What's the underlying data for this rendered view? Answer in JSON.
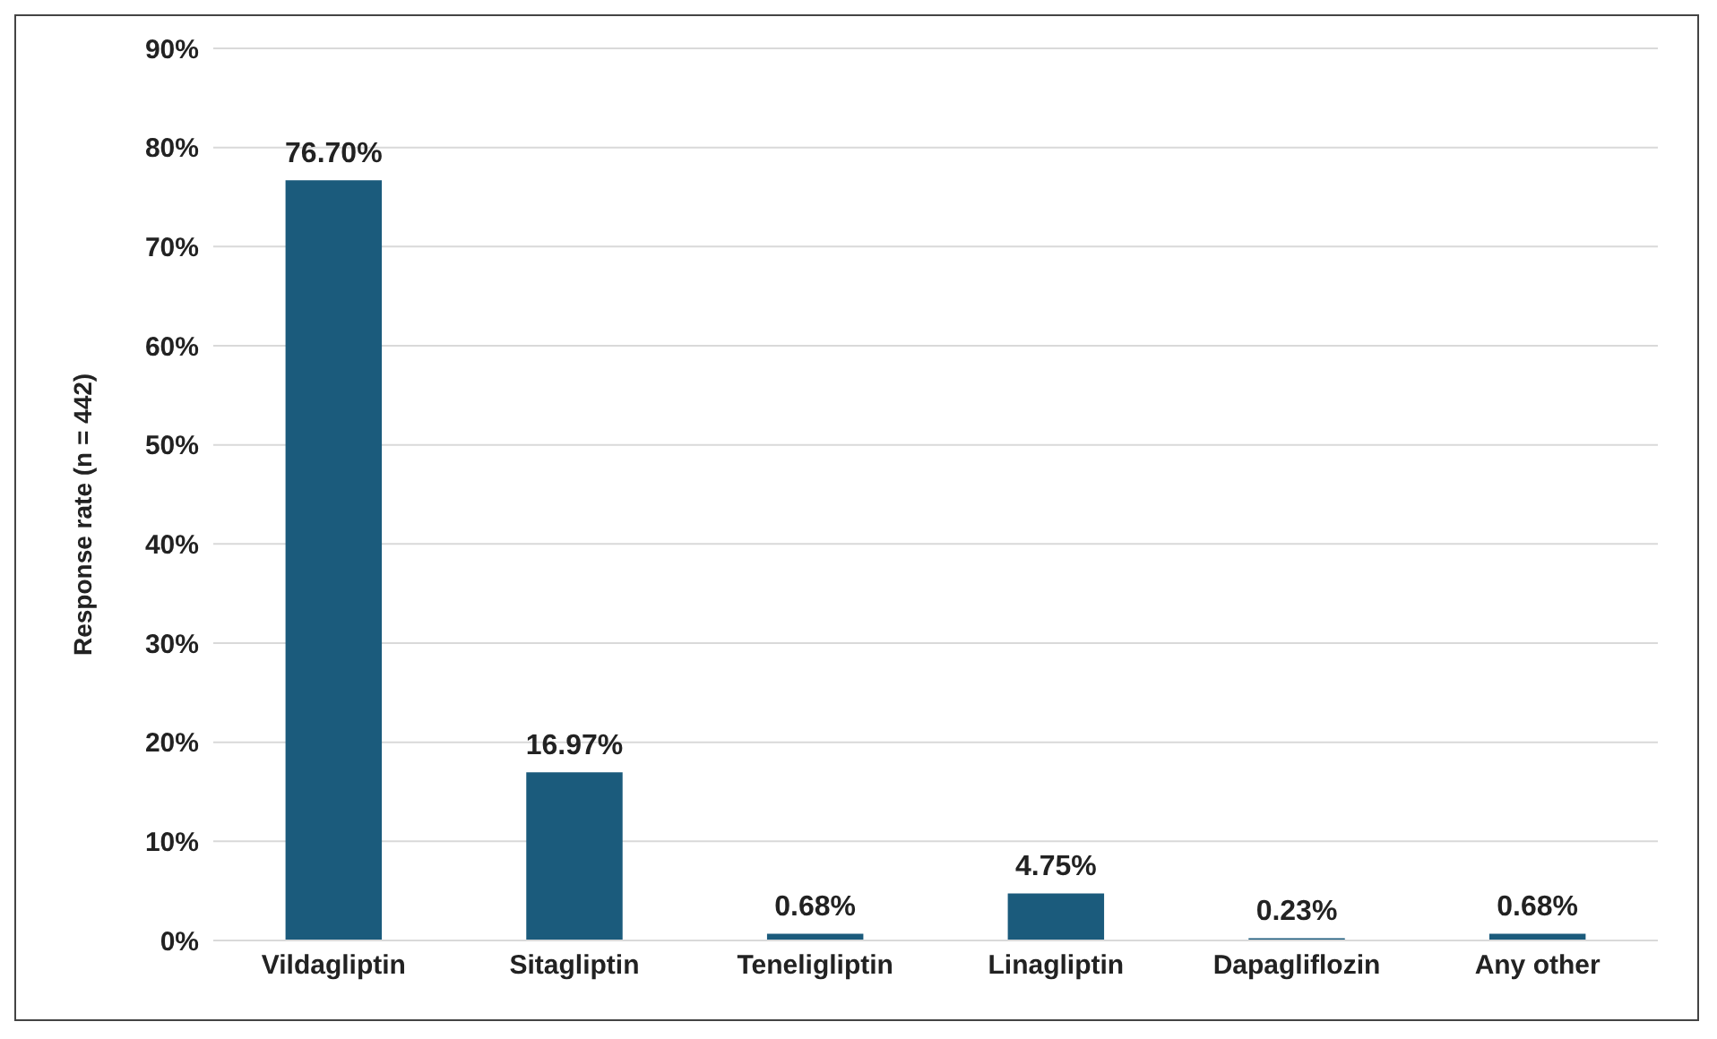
{
  "chart_data": {
    "type": "bar",
    "ylabel": "Response rate (n = 442)",
    "categories": [
      "Vildagliptin",
      "Sitagliptin",
      "Teneligliptin",
      "Linagliptin",
      "Dapagliflozin",
      "Any other"
    ],
    "values": [
      76.7,
      16.97,
      0.68,
      4.75,
      0.23,
      0.68
    ],
    "value_labels": [
      "76.70%",
      "16.97%",
      "0.68%",
      "4.75%",
      "0.23%",
      "0.68%"
    ],
    "color": "#1b5b7c",
    "ylim": [
      0,
      90
    ],
    "yticks": [
      {
        "value": 0,
        "label": "0%"
      },
      {
        "value": 10,
        "label": "10%"
      },
      {
        "value": 20,
        "label": "20%"
      },
      {
        "value": 30,
        "label": "30%"
      },
      {
        "value": 40,
        "label": "40%"
      },
      {
        "value": 50,
        "label": "50%"
      },
      {
        "value": 60,
        "label": "60%"
      },
      {
        "value": 70,
        "label": "70%"
      },
      {
        "value": 80,
        "label": "80%"
      },
      {
        "value": 90,
        "label": "90%"
      }
    ],
    "grid": "y"
  }
}
